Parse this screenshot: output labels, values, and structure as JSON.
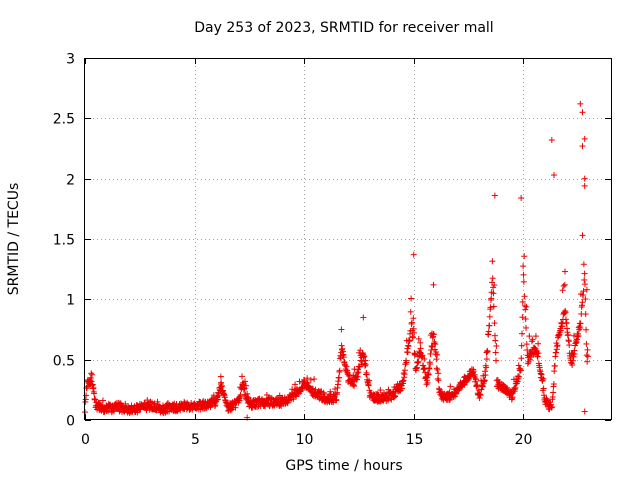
{
  "chart_data": {
    "type": "scatter",
    "title": "Day 253 of 2023, SRMTID for receiver mall",
    "xlabel": "GPS time / hours",
    "ylabel": "SRMTID / TECUs",
    "xlim": [
      0,
      24
    ],
    "ylim": [
      0,
      3
    ],
    "x_ticks": [
      0,
      5,
      10,
      15,
      20
    ],
    "x_tick_labels": [
      "0",
      "5",
      "10",
      "15",
      "20"
    ],
    "y_ticks": [
      0,
      0.5,
      1,
      1.5,
      2,
      2.5,
      3
    ],
    "y_tick_labels": [
      "0",
      "0.5",
      "1",
      "1.5",
      "2",
      "2.5",
      "3"
    ],
    "grid": true,
    "marker": "+",
    "color": "#ee0000",
    "series": [
      {
        "name": "SRMTID",
        "profile": [
          [
            0.0,
            0.1
          ],
          [
            0.1,
            0.3
          ],
          [
            0.3,
            0.32
          ],
          [
            0.5,
            0.12
          ],
          [
            1.0,
            0.09
          ],
          [
            1.5,
            0.11
          ],
          [
            2.0,
            0.08
          ],
          [
            2.5,
            0.1
          ],
          [
            3.0,
            0.12
          ],
          [
            3.5,
            0.09
          ],
          [
            4.0,
            0.1
          ],
          [
            4.5,
            0.12
          ],
          [
            5.0,
            0.11
          ],
          [
            5.5,
            0.13
          ],
          [
            6.0,
            0.15
          ],
          [
            6.2,
            0.3
          ],
          [
            6.5,
            0.1
          ],
          [
            7.0,
            0.15
          ],
          [
            7.2,
            0.28
          ],
          [
            7.5,
            0.12
          ],
          [
            8.0,
            0.15
          ],
          [
            8.5,
            0.15
          ],
          [
            9.0,
            0.15
          ],
          [
            9.5,
            0.2
          ],
          [
            10.0,
            0.3
          ],
          [
            10.5,
            0.22
          ],
          [
            11.0,
            0.18
          ],
          [
            11.5,
            0.18
          ],
          [
            11.7,
            0.6
          ],
          [
            12.0,
            0.35
          ],
          [
            12.3,
            0.3
          ],
          [
            12.7,
            0.55
          ],
          [
            13.0,
            0.2
          ],
          [
            13.5,
            0.18
          ],
          [
            14.0,
            0.2
          ],
          [
            14.5,
            0.3
          ],
          [
            14.9,
            0.8
          ],
          [
            15.1,
            0.4
          ],
          [
            15.3,
            0.6
          ],
          [
            15.6,
            0.3
          ],
          [
            15.9,
            0.7
          ],
          [
            16.2,
            0.2
          ],
          [
            16.8,
            0.2
          ],
          [
            17.2,
            0.3
          ],
          [
            17.7,
            0.4
          ],
          [
            18.0,
            0.2
          ],
          [
            18.3,
            0.4
          ],
          [
            18.6,
            1.2
          ],
          [
            18.8,
            0.3
          ],
          [
            19.5,
            0.2
          ],
          [
            19.9,
            0.45
          ],
          [
            20.0,
            1.2
          ],
          [
            20.2,
            0.5
          ],
          [
            20.6,
            0.6
          ],
          [
            21.0,
            0.15
          ],
          [
            21.3,
            0.1
          ],
          [
            21.5,
            0.6
          ],
          [
            21.9,
            0.9
          ],
          [
            22.2,
            0.45
          ],
          [
            22.6,
            0.8
          ],
          [
            22.8,
            1.2
          ],
          [
            22.9,
            0.5
          ]
        ],
        "spikes": [
          [
            6.2,
            0.36
          ],
          [
            7.3,
            0.32
          ],
          [
            7.4,
            0.02
          ],
          [
            11.7,
            0.75
          ],
          [
            12.7,
            0.85
          ],
          [
            15.0,
            1.37
          ],
          [
            15.9,
            1.12
          ],
          [
            18.7,
            1.86
          ],
          [
            19.9,
            1.84
          ],
          [
            21.3,
            2.32
          ],
          [
            21.4,
            2.03
          ],
          [
            21.9,
            1.23
          ],
          [
            22.6,
            2.62
          ],
          [
            22.7,
            2.55
          ],
          [
            22.8,
            2.33
          ],
          [
            22.7,
            2.27
          ],
          [
            22.8,
            2.0
          ],
          [
            22.8,
            1.94
          ],
          [
            22.7,
            1.53
          ],
          [
            22.9,
            1.08
          ],
          [
            22.8,
            0.07
          ]
        ]
      }
    ]
  }
}
